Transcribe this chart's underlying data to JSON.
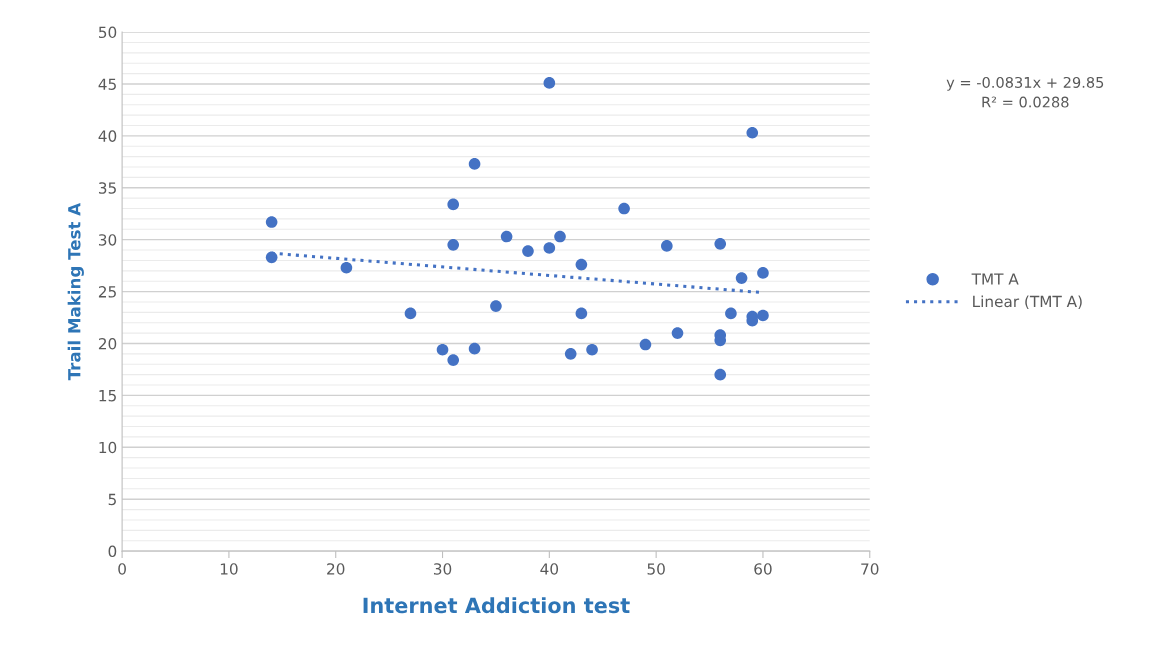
{
  "chart_data": {
    "type": "scatter",
    "xlabel": "Internet Addiction test",
    "ylabel": "Trail Making Test A",
    "xlim": [
      0,
      70
    ],
    "xticks": [
      0,
      10,
      20,
      30,
      40,
      50,
      60,
      70
    ],
    "ylim": [
      0,
      50
    ],
    "yticks": [
      0,
      5,
      10,
      15,
      20,
      25,
      30,
      35,
      40,
      45,
      50
    ],
    "grid": "y",
    "legend": "right",
    "marker": "circle",
    "annotations": [
      "y = -0.0831x + 29.85\nR² = 0.0288"
    ],
    "series": [
      {
        "name": "TMT A",
        "color": "#4472c4",
        "x": [
          14,
          14,
          21,
          27,
          30,
          31,
          31,
          31,
          33,
          33,
          38,
          35,
          36,
          40,
          41,
          40,
          43,
          43,
          42,
          44,
          47,
          49,
          51,
          52,
          56,
          56,
          56,
          56,
          57,
          58,
          59,
          59,
          59,
          60,
          60
        ],
        "values": [
          31.7,
          28.3,
          27.3,
          22.9,
          19.4,
          18.4,
          29.5,
          33.4,
          37.3,
          19.5,
          28.9,
          23.6,
          30.3,
          29.2,
          30.3,
          45.1,
          27.6,
          22.9,
          19.0,
          19.4,
          33.0,
          19.9,
          29.4,
          21.0,
          29.6,
          20.8,
          20.3,
          17.0,
          22.9,
          26.3,
          40.3,
          22.6,
          22.2,
          22.7,
          26.8
        ]
      },
      {
        "name": "Linear (TMT A)",
        "type": "line",
        "color": "#4472c4",
        "line_style": "dotted",
        "marker": "none",
        "x": [
          14,
          60
        ],
        "values": [
          28.7,
          24.9
        ]
      }
    ]
  }
}
